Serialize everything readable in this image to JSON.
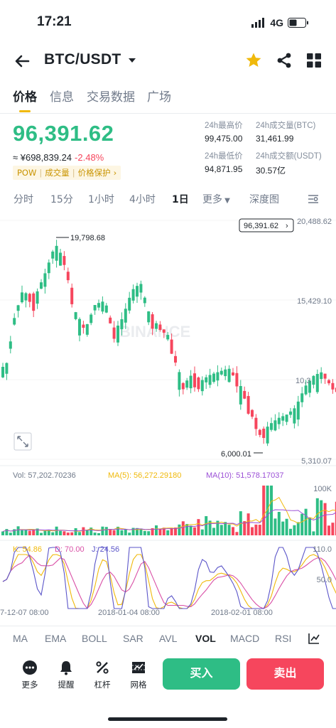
{
  "status_bar": {
    "time": "17:21",
    "network": "4G"
  },
  "header": {
    "pair": "BTC/USDT"
  },
  "tabs": [
    {
      "label": "价格",
      "active": true
    },
    {
      "label": "信息",
      "active": false
    },
    {
      "label": "交易数据",
      "active": false
    },
    {
      "label": "广场",
      "active": false
    }
  ],
  "ticker": {
    "last_price": "96,391.62",
    "fiat_price": "≈ ¥698,839.24",
    "change": "-2.48%",
    "tags": [
      "POW",
      "成交量",
      "价格保护"
    ],
    "stats": {
      "high_label": "24h最高价",
      "high_value": "99,475.00",
      "vol_btc_label": "24h成交量(BTC)",
      "vol_btc_value": "31,461.99",
      "low_label": "24h最低价",
      "low_value": "94,871.95",
      "vol_usdt_label": "24h成交额(USDT)",
      "vol_usdt_value": "30.57亿"
    }
  },
  "intervals": {
    "items": [
      "分时",
      "15分",
      "1小时",
      "4小时",
      "1日",
      "更多",
      "深度图"
    ],
    "active": "1日"
  },
  "chart": {
    "price_tag": "96,391.62",
    "y_labels": [
      "20,488.62",
      "15,429.10",
      "10,3",
      "5,310.07"
    ],
    "high_marker": "19,798.68",
    "low_marker": "6,000.01",
    "watermark": "BINANCE",
    "volume_legend": {
      "vol": "Vol: 57,202.70236",
      "ma5": "MA(5): 56,272.29180",
      "ma10": "MA(10): 51,578.17037"
    },
    "volume_axis": "100K",
    "kdj_legend": {
      "k": "K: 54.86",
      "d": "D: 70.00",
      "j": "J: 24.56"
    },
    "kdj_axis": [
      "110.0",
      "50.0"
    ],
    "x_labels": [
      "7-12-07 08:00",
      "2018-01-04 08:00",
      "2018-02-01 08:00"
    ],
    "colors": {
      "up": "#2ebd85",
      "down": "#f6465d",
      "ma5": "#f0b90b",
      "ma10": "#9b4fd6",
      "j": "#5b55c9"
    }
  },
  "indicators": {
    "items": [
      "MA",
      "EMA",
      "BOLL",
      "SAR",
      "AVL",
      "VOL",
      "MACD",
      "RSI"
    ],
    "active": "VOL"
  },
  "bottom_bar": {
    "more": "更多",
    "alert": "提醒",
    "leverage": "杠杆",
    "grid": "网格",
    "buy": "买入",
    "sell": "卖出"
  }
}
